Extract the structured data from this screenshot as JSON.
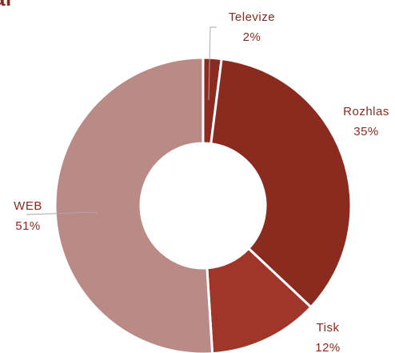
{
  "chart_data": {
    "type": "donut",
    "title": "al",
    "categories": [
      "Televize",
      "Rozhlas",
      "Tisk",
      "WEB"
    ],
    "values": [
      2,
      35,
      12,
      51
    ],
    "value_labels": [
      "2%",
      "35%",
      "12%",
      "51%"
    ],
    "colors": [
      "#8b2a20",
      "#8b2a1f",
      "#a0352a",
      "#b98a86"
    ]
  }
}
